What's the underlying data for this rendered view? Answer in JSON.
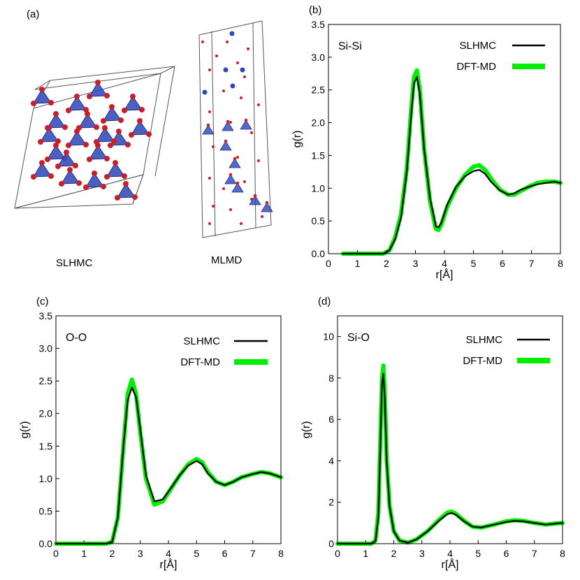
{
  "panels": {
    "a": {
      "label": "(a)",
      "structures": [
        {
          "name": "SLHMC",
          "caption": "SLHMC"
        },
        {
          "name": "MLMD",
          "caption": "MLMD"
        }
      ],
      "colors": {
        "tetrahedron": "#3a4fb8",
        "oxygen": "#c8202a",
        "silicon": "#2c4ab0",
        "cell_edge": "#444444"
      }
    }
  },
  "chart_data": [
    {
      "panel": "(b)",
      "type": "line",
      "annotation": "Si-Si",
      "xlabel": "r[Å]",
      "ylabel": "g(r)",
      "xlim": [
        0,
        8
      ],
      "ylim": [
        0,
        3.5
      ],
      "xticks": [
        "0",
        "1",
        "2",
        "3",
        "4",
        "5",
        "6",
        "7",
        "8"
      ],
      "yticks": [
        "0.0",
        "0.5",
        "1.0",
        "1.5",
        "2.0",
        "2.5",
        "3.0",
        "3.5"
      ],
      "legend": [
        {
          "name": "SLHMC",
          "color": "#000000"
        },
        {
          "name": "DFT-MD",
          "color": "#00ee00"
        }
      ],
      "series": [
        {
          "name": "DFT-MD",
          "color": "#00ee00",
          "x": [
            0.5,
            1.9,
            2.1,
            2.3,
            2.5,
            2.7,
            2.85,
            2.95,
            3.05,
            3.15,
            3.3,
            3.5,
            3.7,
            3.8,
            3.9,
            4.1,
            4.4,
            4.7,
            5.0,
            5.2,
            5.4,
            5.6,
            5.9,
            6.2,
            6.4,
            6.6,
            6.9,
            7.2,
            7.5,
            7.8,
            8.0
          ],
          "y": [
            0.0,
            0.0,
            0.05,
            0.25,
            0.6,
            1.3,
            2.2,
            2.7,
            2.8,
            2.5,
            1.6,
            0.8,
            0.38,
            0.36,
            0.45,
            0.72,
            1.0,
            1.2,
            1.33,
            1.35,
            1.28,
            1.15,
            0.98,
            0.9,
            0.9,
            0.95,
            1.02,
            1.08,
            1.1,
            1.1,
            1.08
          ]
        },
        {
          "name": "SLHMC",
          "color": "#000000",
          "x": [
            0.5,
            1.9,
            2.1,
            2.3,
            2.5,
            2.7,
            2.85,
            2.95,
            3.05,
            3.15,
            3.3,
            3.5,
            3.7,
            3.8,
            3.9,
            4.1,
            4.4,
            4.7,
            5.0,
            5.2,
            5.4,
            5.6,
            5.9,
            6.2,
            6.4,
            6.6,
            6.9,
            7.2,
            7.5,
            7.8,
            8.0
          ],
          "y": [
            0.0,
            0.0,
            0.05,
            0.22,
            0.55,
            1.25,
            2.1,
            2.6,
            2.7,
            2.45,
            1.6,
            0.85,
            0.42,
            0.4,
            0.48,
            0.75,
            1.02,
            1.18,
            1.26,
            1.28,
            1.22,
            1.1,
            0.97,
            0.9,
            0.92,
            0.97,
            1.02,
            1.06,
            1.08,
            1.1,
            1.08
          ]
        }
      ]
    },
    {
      "panel": "(c)",
      "type": "line",
      "annotation": "O-O",
      "xlabel": "r[Å]",
      "ylabel": "g(r)",
      "xlim": [
        0,
        8
      ],
      "ylim": [
        0,
        3.5
      ],
      "xticks": [
        "0",
        "1",
        "2",
        "3",
        "4",
        "5",
        "6",
        "7",
        "8"
      ],
      "yticks": [
        "0.0",
        "0.5",
        "1.0",
        "1.5",
        "2.0",
        "2.5",
        "3.0",
        "3.5"
      ],
      "legend": [
        {
          "name": "SLHMC",
          "color": "#000000"
        },
        {
          "name": "DFT-MD",
          "color": "#00ee00"
        }
      ],
      "series": [
        {
          "name": "DFT-MD",
          "color": "#00ee00",
          "x": [
            0.0,
            1.8,
            2.0,
            2.2,
            2.4,
            2.55,
            2.7,
            2.85,
            3.0,
            3.2,
            3.5,
            3.8,
            4.1,
            4.4,
            4.7,
            5.0,
            5.2,
            5.4,
            5.7,
            6.0,
            6.3,
            6.6,
            7.0,
            7.3,
            7.6,
            8.0
          ],
          "y": [
            0.0,
            0.0,
            0.03,
            0.4,
            1.5,
            2.3,
            2.52,
            2.3,
            1.7,
            1.0,
            0.6,
            0.65,
            0.85,
            1.05,
            1.22,
            1.3,
            1.25,
            1.1,
            0.95,
            0.9,
            0.95,
            1.02,
            1.07,
            1.1,
            1.08,
            1.02
          ]
        },
        {
          "name": "SLHMC",
          "color": "#000000",
          "x": [
            0.0,
            1.8,
            2.0,
            2.2,
            2.4,
            2.55,
            2.7,
            2.85,
            3.0,
            3.2,
            3.5,
            3.8,
            4.1,
            4.4,
            4.7,
            5.0,
            5.2,
            5.4,
            5.7,
            6.0,
            6.3,
            6.6,
            7.0,
            7.3,
            7.6,
            8.0
          ],
          "y": [
            0.0,
            0.0,
            0.03,
            0.4,
            1.5,
            2.2,
            2.4,
            2.25,
            1.75,
            1.05,
            0.65,
            0.68,
            0.86,
            1.05,
            1.2,
            1.27,
            1.22,
            1.08,
            0.95,
            0.9,
            0.95,
            1.02,
            1.07,
            1.1,
            1.08,
            1.02
          ]
        }
      ]
    },
    {
      "panel": "(d)",
      "type": "line",
      "annotation": "Si-O",
      "xlabel": "r[Å]",
      "ylabel": "g(r)",
      "xlim": [
        0,
        8
      ],
      "ylim": [
        0,
        11
      ],
      "xticks": [
        "0",
        "1",
        "2",
        "3",
        "4",
        "5",
        "6",
        "7",
        "8"
      ],
      "yticks": [
        "0",
        "2",
        "4",
        "6",
        "8",
        "10"
      ],
      "legend": [
        {
          "name": "SLHMC",
          "color": "#000000"
        },
        {
          "name": "DFT-MD",
          "color": "#00ee00"
        }
      ],
      "series": [
        {
          "name": "DFT-MD",
          "color": "#00ee00",
          "x": [
            0.0,
            1.2,
            1.35,
            1.45,
            1.52,
            1.58,
            1.63,
            1.68,
            1.75,
            1.85,
            2.0,
            2.2,
            2.5,
            2.8,
            3.2,
            3.6,
            3.9,
            4.05,
            4.2,
            4.5,
            4.8,
            5.1,
            5.5,
            6.0,
            6.3,
            6.6,
            7.0,
            7.4,
            7.8,
            8.0
          ],
          "y": [
            0.0,
            0.0,
            0.15,
            1.5,
            5.0,
            8.0,
            8.6,
            7.2,
            4.0,
            1.8,
            0.6,
            0.15,
            0.05,
            0.2,
            0.6,
            1.15,
            1.5,
            1.55,
            1.45,
            1.1,
            0.82,
            0.78,
            0.9,
            1.08,
            1.13,
            1.1,
            1.0,
            0.92,
            0.98,
            1.0
          ]
        },
        {
          "name": "SLHMC",
          "color": "#000000",
          "x": [
            0.0,
            1.2,
            1.35,
            1.45,
            1.52,
            1.58,
            1.63,
            1.68,
            1.75,
            1.85,
            2.0,
            2.2,
            2.5,
            2.8,
            3.2,
            3.6,
            3.9,
            4.05,
            4.2,
            4.5,
            4.8,
            5.1,
            5.5,
            6.0,
            6.3,
            6.6,
            7.0,
            7.4,
            7.8,
            8.0
          ],
          "y": [
            0.0,
            0.0,
            0.12,
            1.3,
            4.6,
            7.7,
            8.2,
            7.0,
            3.9,
            1.8,
            0.6,
            0.15,
            0.05,
            0.2,
            0.6,
            1.1,
            1.42,
            1.48,
            1.4,
            1.08,
            0.82,
            0.78,
            0.9,
            1.05,
            1.1,
            1.08,
            1.0,
            0.92,
            0.98,
            1.0
          ]
        }
      ]
    }
  ]
}
